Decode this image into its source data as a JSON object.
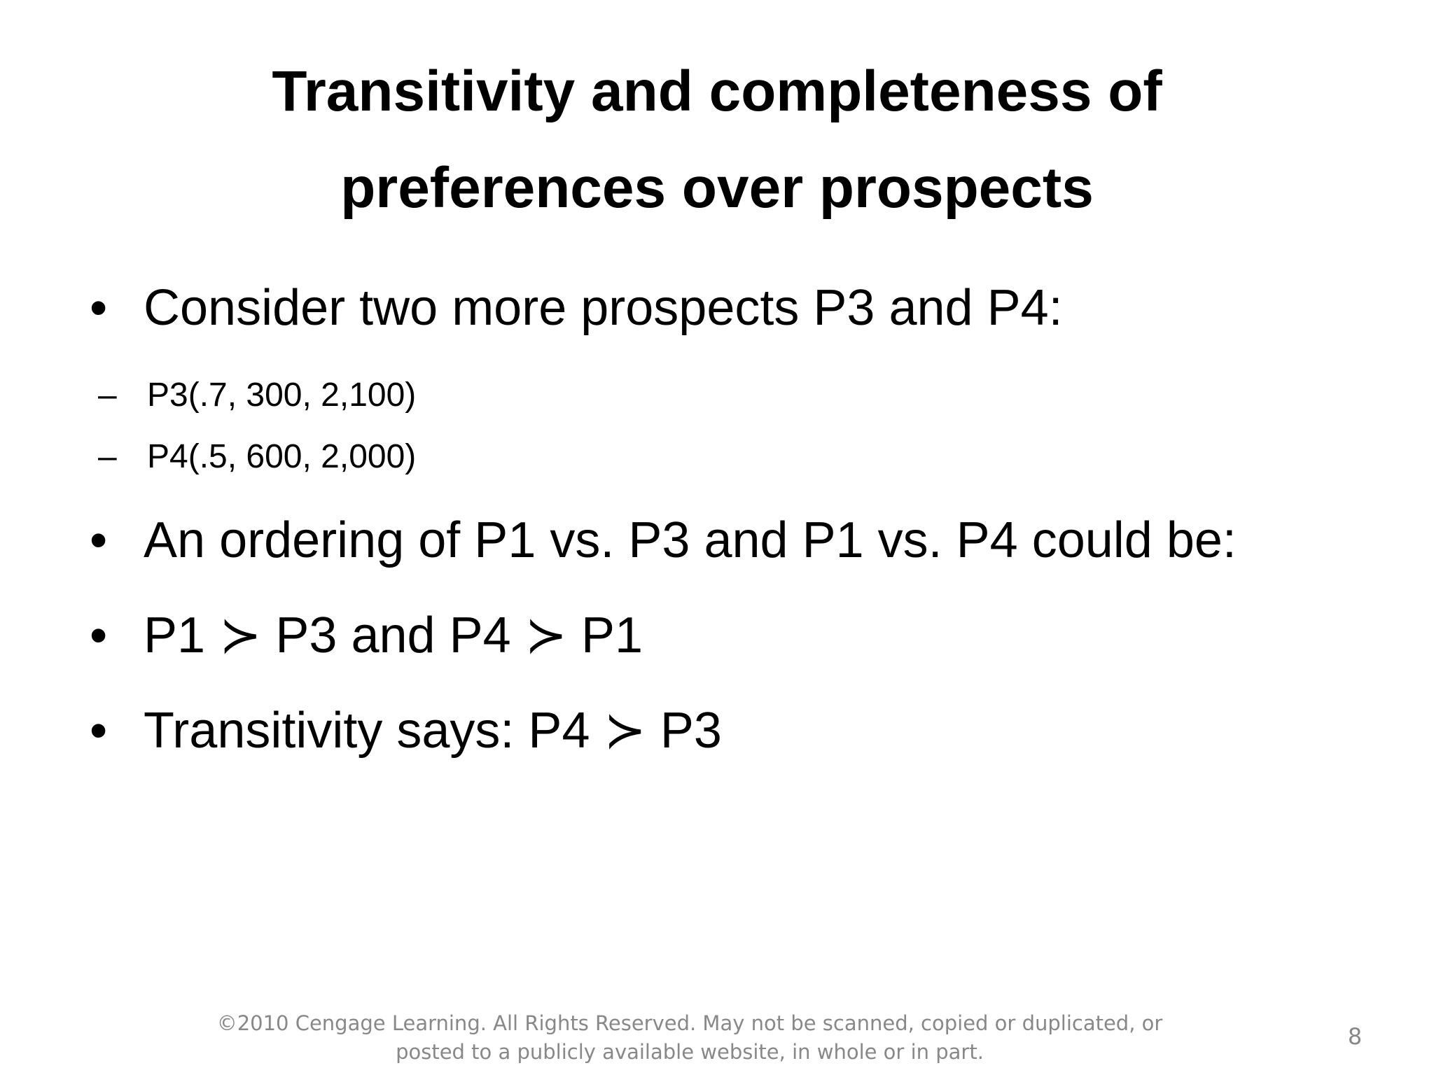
{
  "title": [
    "Transitivity and completeness of",
    "preferences over prospects"
  ],
  "bullets": [
    {
      "text": "Consider two more prospects P3 and P4:",
      "subs": [
        "P3(.7, 300, 2,100)",
        "P4(.5, 600, 2,000)"
      ]
    },
    {
      "text": "An ordering of P1 vs. P3 and P1 vs. P4 could be:"
    },
    {
      "text": "P1 ≻ P3 and P4 ≻ P1"
    },
    {
      "text": "Transitivity says: P4 ≻ P3"
    }
  ],
  "footer": [
    "©2010 Cengage Learning.  All Rights Reserved.  May not be scanned, copied or duplicated, or",
    "posted to a publicly available website, in whole or in part."
  ],
  "page_number": "8"
}
